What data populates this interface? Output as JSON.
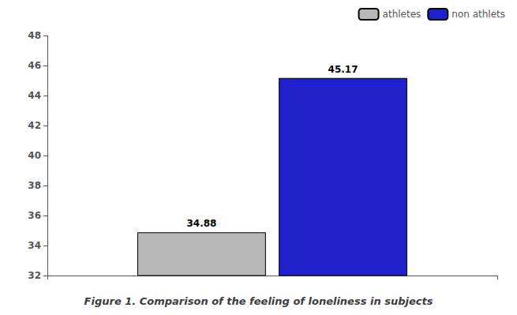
{
  "chart_data": {
    "type": "bar",
    "title": "Figure 1. Comparison of the feeling of loneliness in subjects",
    "categories": [
      null
    ],
    "series": [
      {
        "name": "athletes",
        "color": "#b8b8b8",
        "values": [
          34.88
        ]
      },
      {
        "name": "non athlets",
        "color": "#2020cc",
        "values": [
          45.17
        ]
      }
    ],
    "ylim": [
      32,
      48
    ],
    "yticks": [
      32,
      34,
      36,
      38,
      40,
      42,
      44,
      46,
      48
    ],
    "grid": false,
    "legend": "upper right",
    "data_labels": true,
    "tick_labels": "y"
  }
}
